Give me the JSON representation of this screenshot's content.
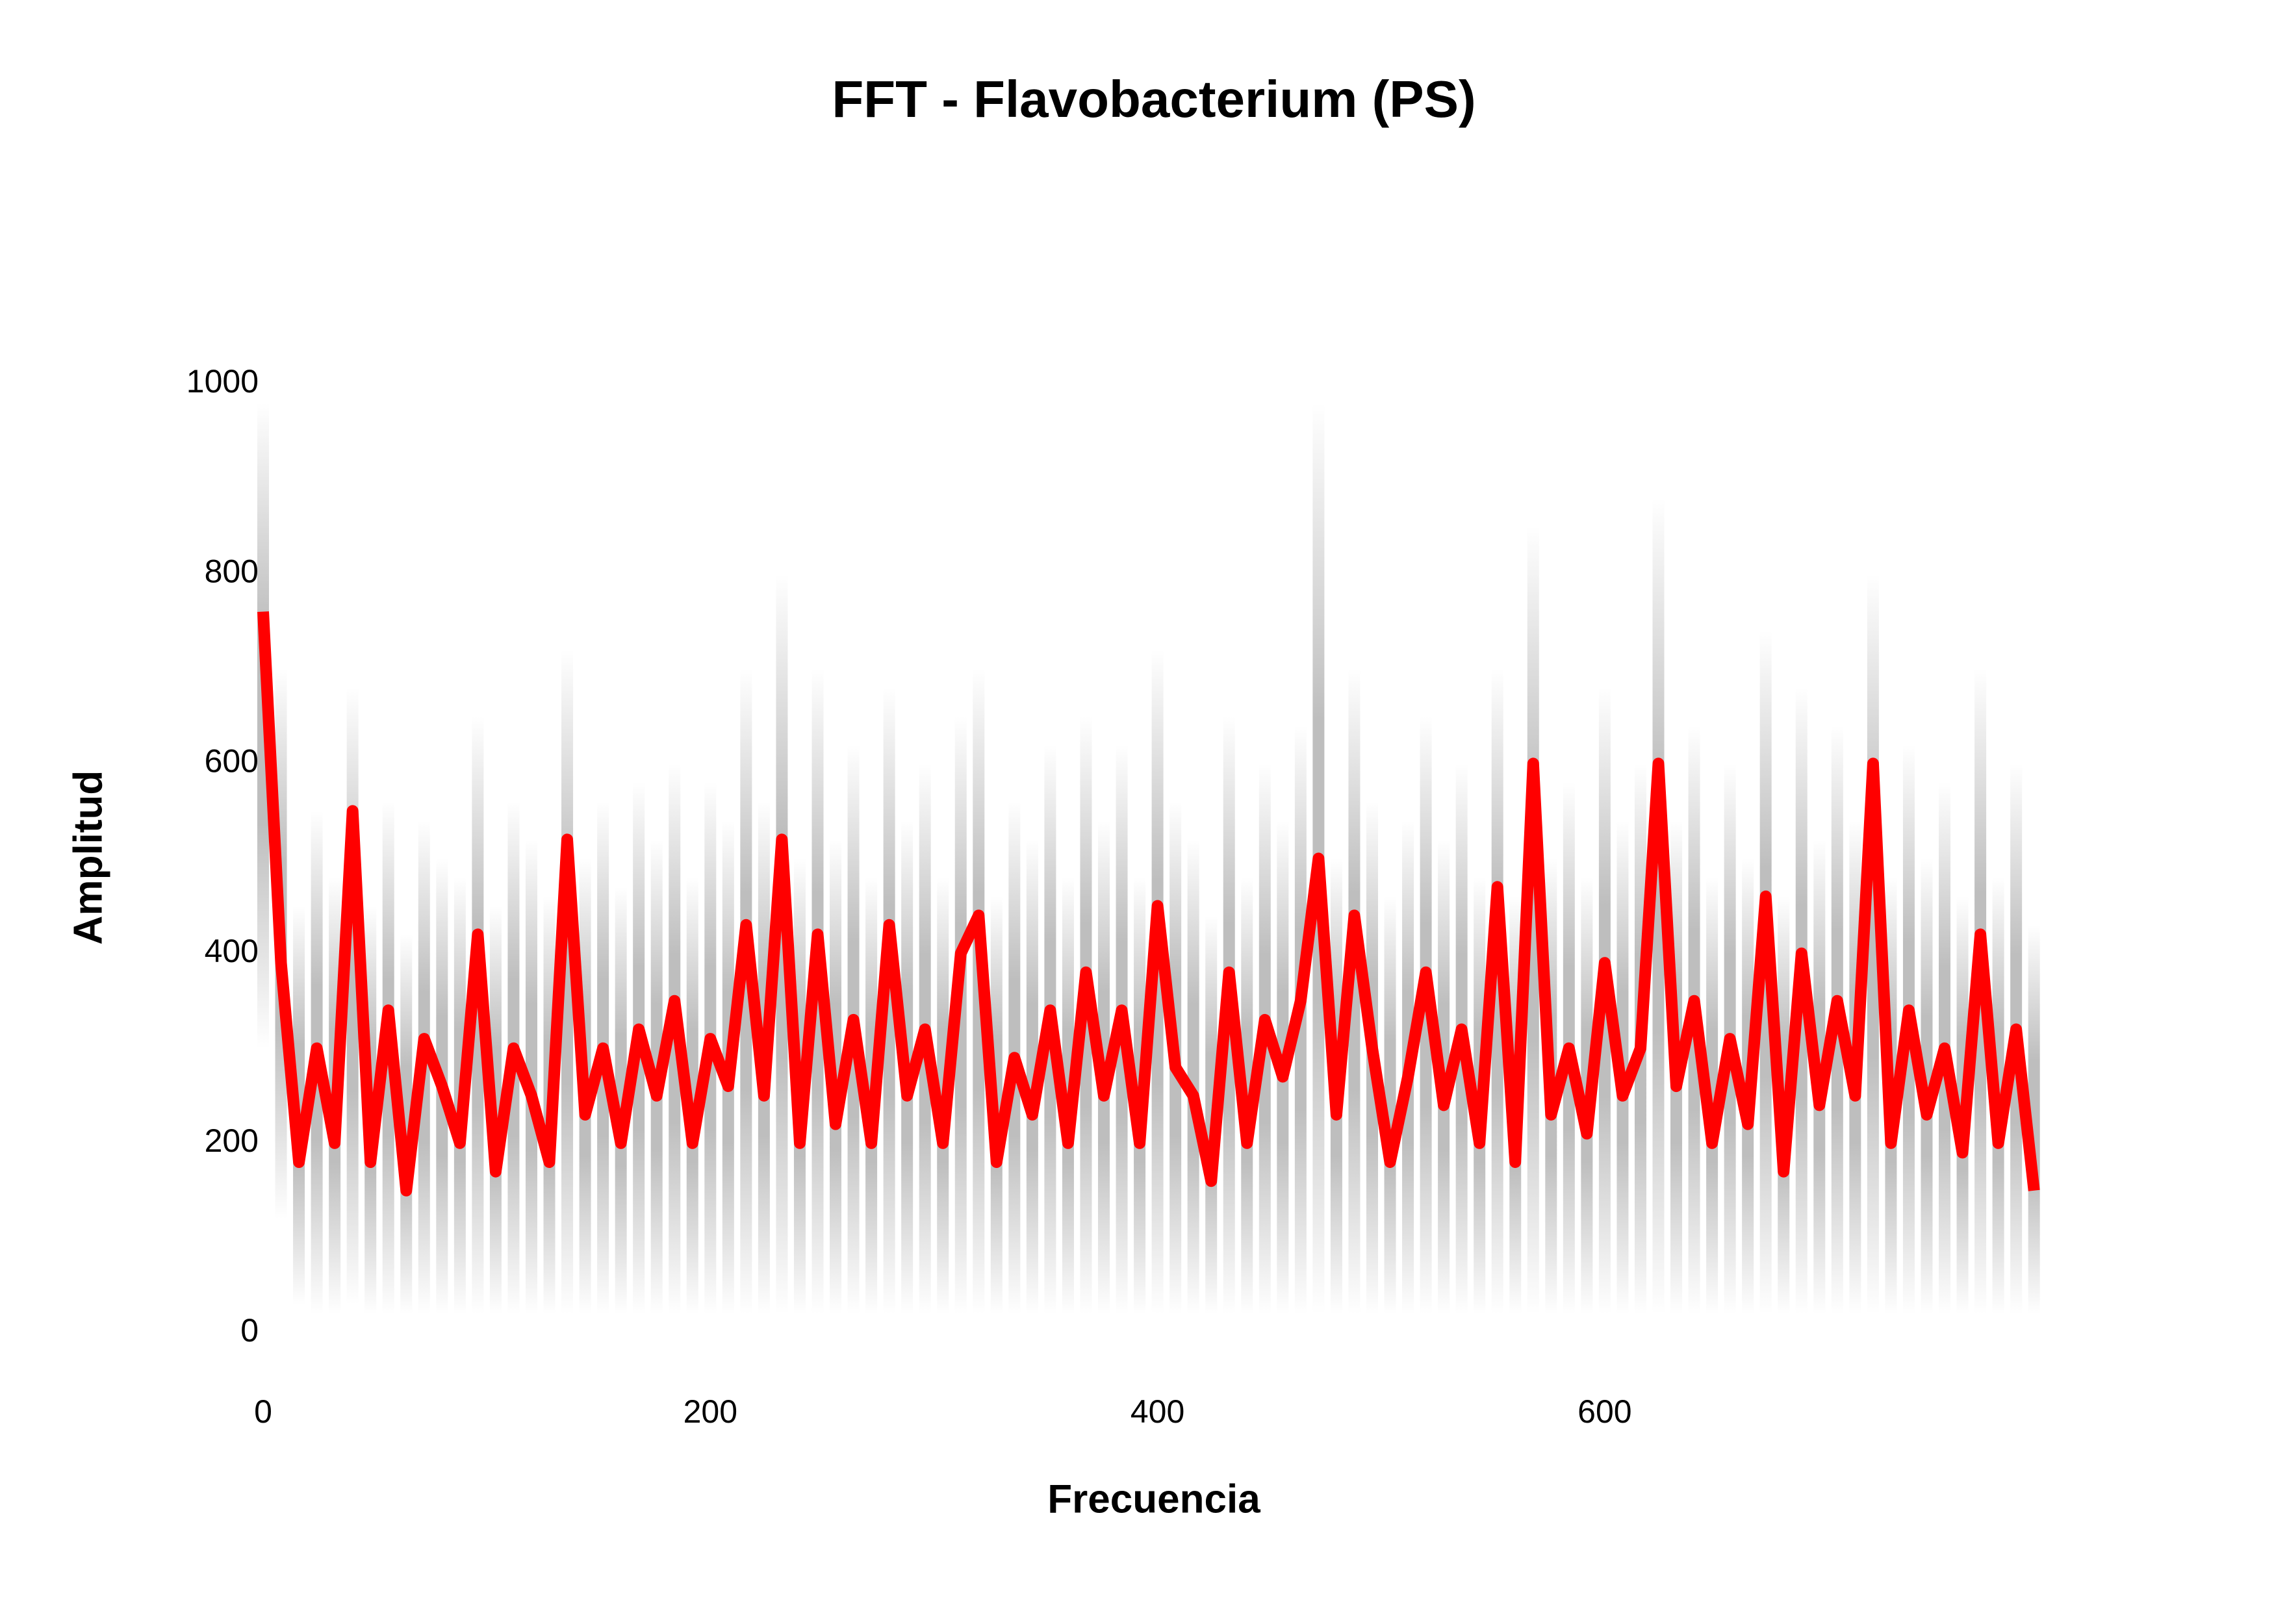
{
  "chart_data": {
    "type": "line",
    "title": "FFT - Flavobacterium (PS)",
    "x_label": "Frecuencia",
    "y_label": "Amplitud",
    "x": [
      0,
      8,
      16,
      24,
      32,
      40,
      48,
      56,
      64,
      72,
      80,
      88,
      96,
      104,
      112,
      120,
      128,
      136,
      144,
      152,
      160,
      168,
      176,
      184,
      192,
      200,
      208,
      216,
      224,
      232,
      240,
      248,
      256,
      264,
      272,
      280,
      288,
      296,
      304,
      312,
      320,
      328,
      336,
      344,
      352,
      360,
      368,
      376,
      384,
      392,
      400,
      408,
      416,
      424,
      432,
      440,
      448,
      456,
      464,
      472,
      480,
      488,
      496,
      504,
      512,
      520,
      528,
      536,
      544,
      552,
      560,
      568,
      576,
      584,
      592,
      600,
      608,
      616,
      624,
      632,
      640,
      648,
      656,
      664,
      672,
      680,
      688,
      696,
      704,
      712,
      720,
      728,
      736,
      744,
      752,
      760,
      768,
      776,
      784,
      792
    ],
    "values": [
      760,
      390,
      180,
      300,
      200,
      550,
      180,
      340,
      150,
      310,
      260,
      200,
      420,
      170,
      300,
      250,
      180,
      520,
      230,
      300,
      200,
      320,
      250,
      350,
      200,
      310,
      260,
      430,
      250,
      520,
      200,
      420,
      220,
      330,
      200,
      430,
      250,
      320,
      200,
      400,
      440,
      180,
      290,
      230,
      340,
      200,
      380,
      250,
      340,
      200,
      450,
      280,
      250,
      160,
      380,
      200,
      330,
      270,
      350,
      500,
      230,
      440,
      300,
      180,
      270,
      380,
      240,
      320,
      200,
      470,
      180,
      600,
      230,
      300,
      210,
      390,
      250,
      300,
      600,
      260,
      350,
      200,
      310,
      220,
      460,
      170,
      400,
      240,
      350,
      250,
      600,
      200,
      340,
      230,
      300,
      190,
      420,
      200,
      320,
      150
    ],
    "color": "#ff0000",
    "band": {
      "color": "#444444",
      "lower": [
        300,
        120,
        30,
        20,
        20,
        30,
        20,
        20,
        20,
        20,
        20,
        20,
        20,
        20,
        20,
        20,
        20,
        20,
        20,
        20,
        20,
        20,
        20,
        20,
        20,
        20,
        20,
        20,
        20,
        20,
        20,
        20,
        20,
        20,
        20,
        20,
        20,
        20,
        20,
        20,
        20,
        20,
        20,
        20,
        20,
        20,
        20,
        20,
        20,
        20,
        20,
        20,
        20,
        20,
        20,
        20,
        20,
        20,
        20,
        20,
        20,
        20,
        20,
        20,
        20,
        20,
        20,
        20,
        20,
        20,
        20,
        20,
        20,
        20,
        20,
        20,
        20,
        20,
        20,
        20,
        20,
        20,
        20,
        20,
        20,
        20,
        20,
        20,
        20,
        20,
        20,
        20,
        20,
        20,
        20,
        20,
        20,
        20,
        20,
        20
      ],
      "upper": [
        980,
        700,
        450,
        550,
        480,
        680,
        450,
        560,
        420,
        540,
        500,
        480,
        650,
        450,
        560,
        520,
        460,
        720,
        500,
        560,
        470,
        580,
        520,
        600,
        480,
        580,
        540,
        700,
        560,
        800,
        500,
        700,
        520,
        620,
        480,
        680,
        540,
        600,
        480,
        650,
        700,
        460,
        560,
        520,
        620,
        480,
        650,
        540,
        620,
        480,
        720,
        560,
        520,
        440,
        650,
        480,
        600,
        540,
        640,
        980,
        500,
        700,
        560,
        460,
        540,
        650,
        520,
        600,
        480,
        700,
        460,
        850,
        500,
        580,
        480,
        680,
        540,
        600,
        880,
        540,
        640,
        480,
        600,
        500,
        740,
        460,
        680,
        520,
        640,
        540,
        800,
        480,
        620,
        500,
        580,
        460,
        700,
        480,
        600,
        430
      ]
    },
    "xlim": [
      0,
      795
    ],
    "ylim": [
      0,
      1000
    ],
    "xticks": [
      0,
      200,
      400,
      600
    ],
    "yticks": [
      0,
      200,
      400,
      600,
      800,
      1000
    ],
    "grid": false
  }
}
